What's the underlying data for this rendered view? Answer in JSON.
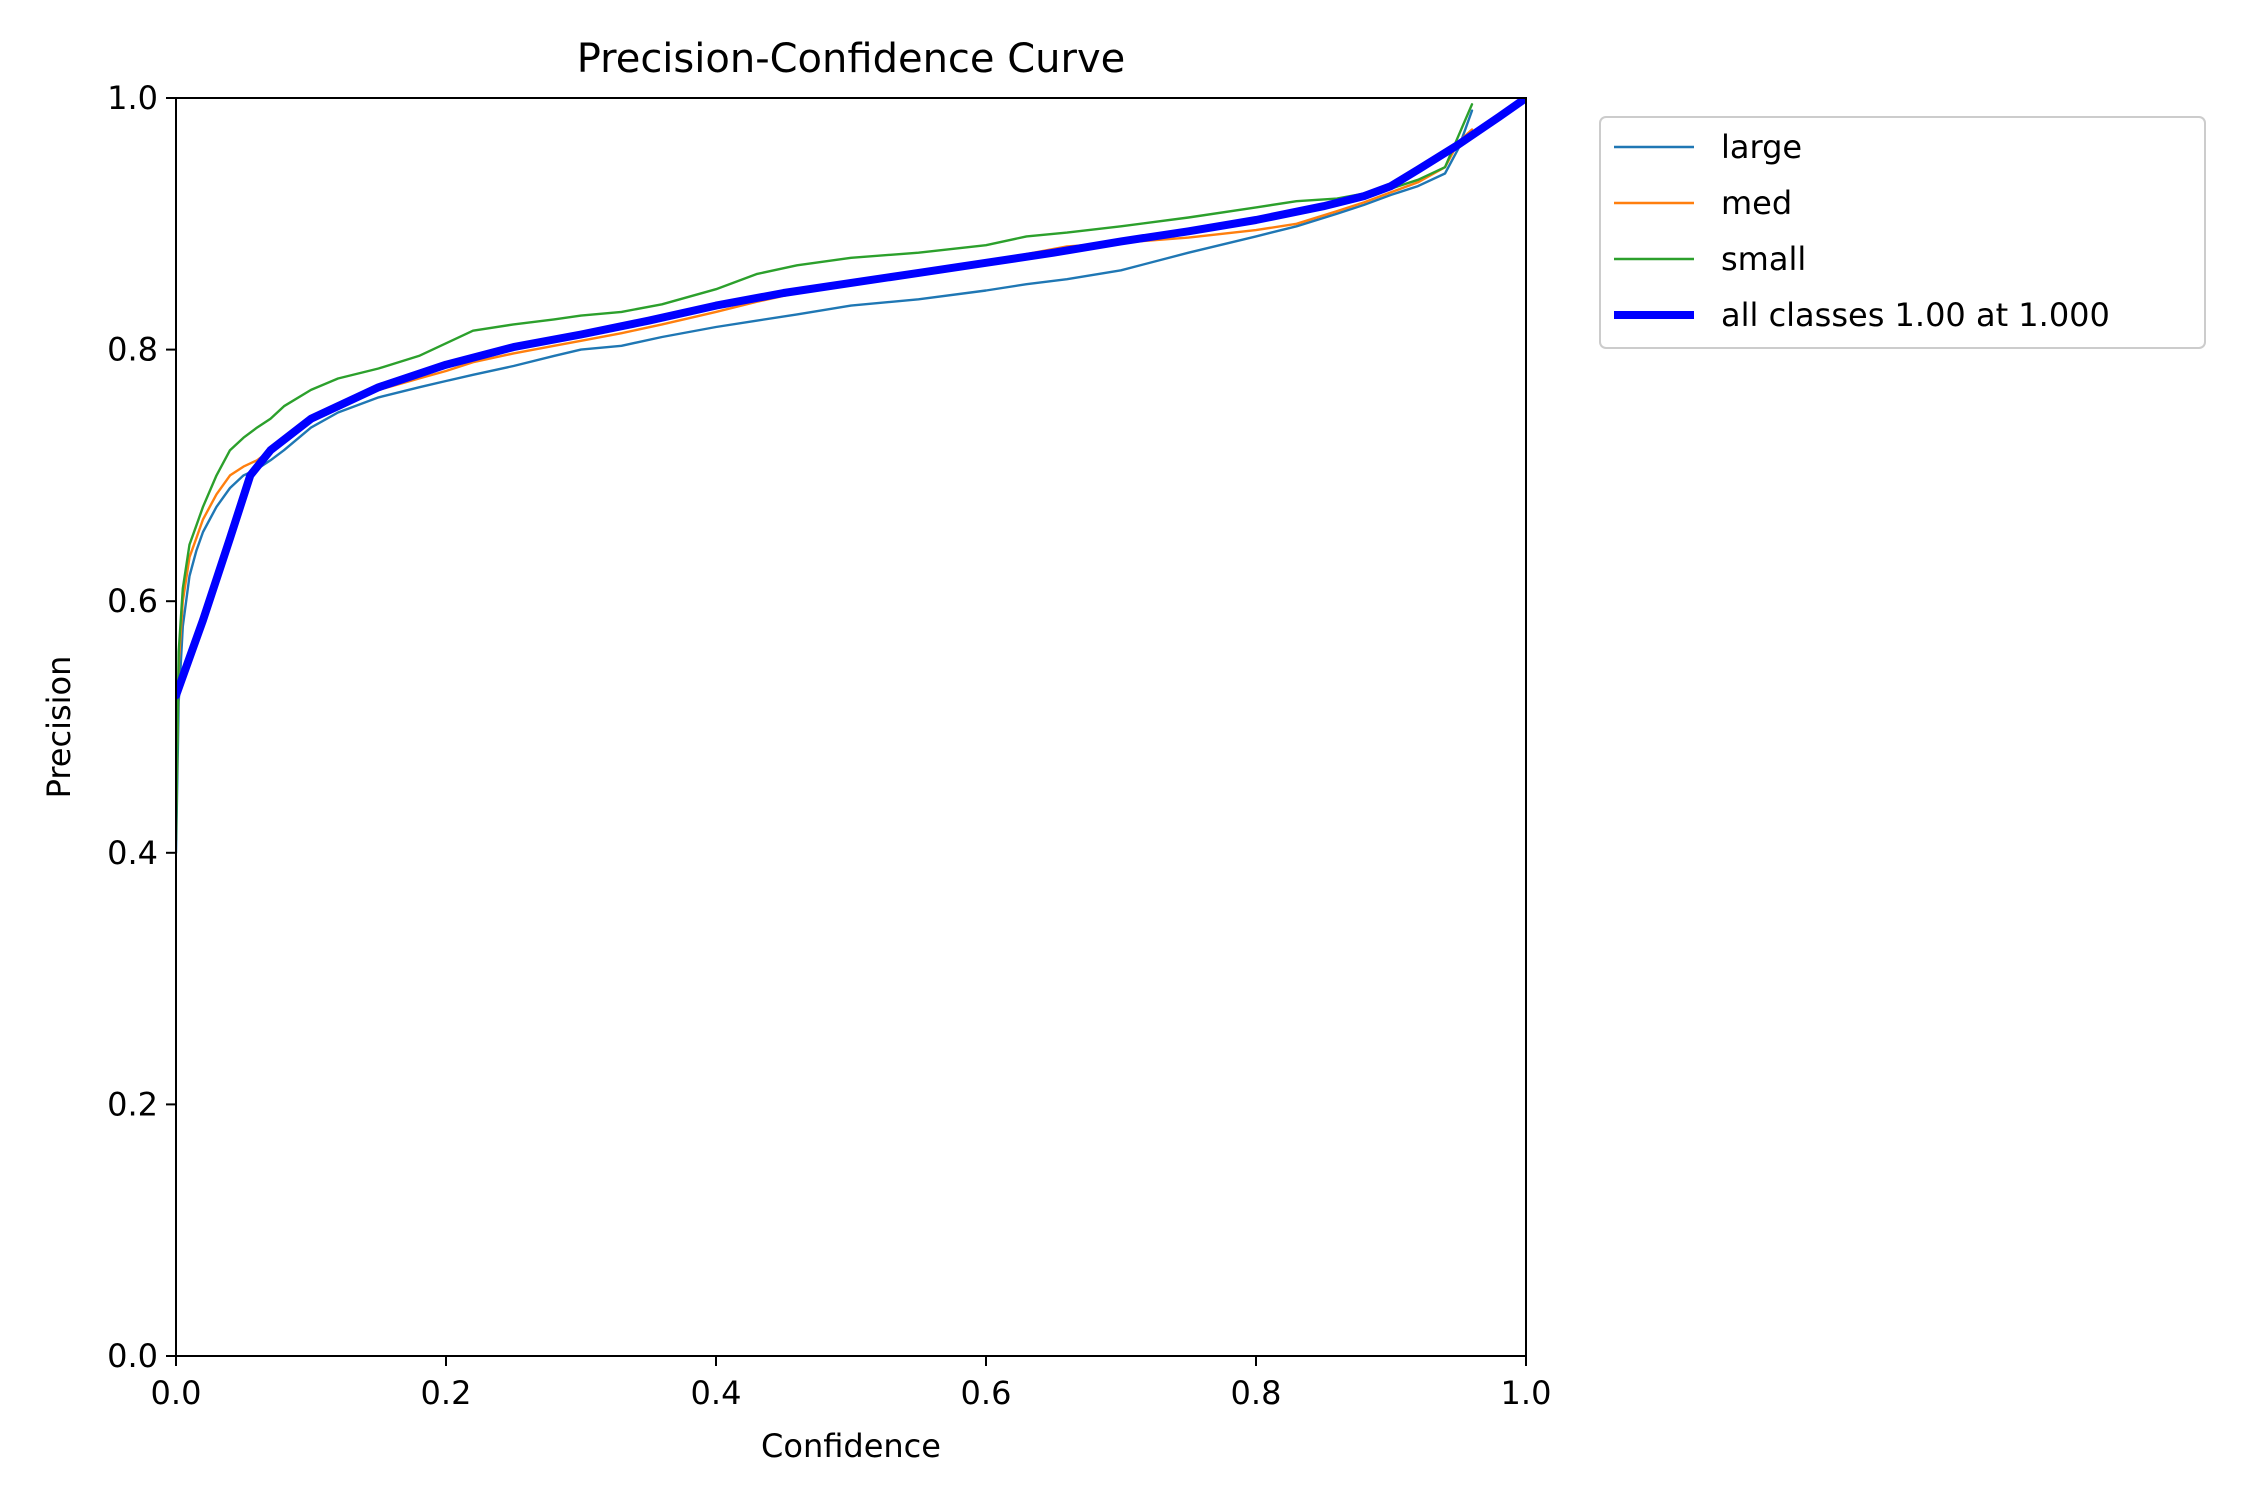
{
  "chart_data": {
    "type": "line",
    "title": "Precision-Confidence Curve",
    "xlabel": "Confidence",
    "ylabel": "Precision",
    "xlim": [
      0,
      1
    ],
    "ylim": [
      0,
      1
    ],
    "xticks": [
      "0.0",
      "0.2",
      "0.4",
      "0.6",
      "0.8",
      "1.0"
    ],
    "yticks": [
      "0.0",
      "0.2",
      "0.4",
      "0.6",
      "0.8",
      "1.0"
    ],
    "grid": false,
    "legend_position": "outside-top-right",
    "series": [
      {
        "name": "large",
        "color": "#1f77b4",
        "width": "thin",
        "x": [
          0.0,
          0.002,
          0.005,
          0.01,
          0.015,
          0.02,
          0.03,
          0.04,
          0.05,
          0.06,
          0.07,
          0.08,
          0.1,
          0.12,
          0.15,
          0.18,
          0.2,
          0.22,
          0.25,
          0.28,
          0.3,
          0.33,
          0.36,
          0.4,
          0.43,
          0.46,
          0.5,
          0.55,
          0.6,
          0.63,
          0.66,
          0.7,
          0.75,
          0.8,
          0.83,
          0.86,
          0.88,
          0.9,
          0.92,
          0.94,
          0.95,
          0.96
        ],
        "y": [
          0.4,
          0.52,
          0.58,
          0.62,
          0.64,
          0.655,
          0.675,
          0.69,
          0.7,
          0.705,
          0.712,
          0.72,
          0.738,
          0.75,
          0.762,
          0.77,
          0.775,
          0.78,
          0.787,
          0.795,
          0.8,
          0.803,
          0.81,
          0.818,
          0.823,
          0.828,
          0.835,
          0.84,
          0.847,
          0.852,
          0.856,
          0.863,
          0.877,
          0.89,
          0.898,
          0.908,
          0.915,
          0.923,
          0.93,
          0.94,
          0.96,
          0.99
        ]
      },
      {
        "name": "med",
        "color": "#ff7f0e",
        "width": "thin",
        "x": [
          0.0,
          0.002,
          0.005,
          0.01,
          0.015,
          0.02,
          0.03,
          0.04,
          0.05,
          0.06,
          0.07,
          0.08,
          0.1,
          0.12,
          0.15,
          0.18,
          0.2,
          0.22,
          0.25,
          0.28,
          0.3,
          0.33,
          0.36,
          0.4,
          0.43,
          0.46,
          0.5,
          0.55,
          0.6,
          0.63,
          0.66,
          0.7,
          0.75,
          0.8,
          0.83,
          0.86,
          0.88,
          0.9,
          0.92,
          0.94,
          0.95,
          0.96
        ],
        "y": [
          0.42,
          0.55,
          0.6,
          0.635,
          0.65,
          0.665,
          0.685,
          0.7,
          0.707,
          0.712,
          0.72,
          0.728,
          0.745,
          0.757,
          0.768,
          0.777,
          0.783,
          0.79,
          0.797,
          0.803,
          0.807,
          0.813,
          0.82,
          0.83,
          0.838,
          0.845,
          0.852,
          0.86,
          0.868,
          0.876,
          0.882,
          0.885,
          0.889,
          0.895,
          0.9,
          0.91,
          0.917,
          0.925,
          0.933,
          0.945,
          0.965,
          0.975
        ]
      },
      {
        "name": "small",
        "color": "#2ca02c",
        "width": "thin",
        "x": [
          0.0,
          0.002,
          0.005,
          0.01,
          0.015,
          0.02,
          0.03,
          0.04,
          0.05,
          0.06,
          0.07,
          0.08,
          0.1,
          0.12,
          0.15,
          0.18,
          0.2,
          0.22,
          0.25,
          0.28,
          0.3,
          0.33,
          0.36,
          0.4,
          0.43,
          0.46,
          0.5,
          0.55,
          0.6,
          0.63,
          0.66,
          0.7,
          0.75,
          0.8,
          0.83,
          0.86,
          0.88,
          0.9,
          0.92,
          0.94,
          0.95,
          0.96
        ],
        "y": [
          0.41,
          0.56,
          0.61,
          0.645,
          0.66,
          0.675,
          0.7,
          0.72,
          0.73,
          0.738,
          0.745,
          0.755,
          0.768,
          0.777,
          0.785,
          0.795,
          0.805,
          0.815,
          0.82,
          0.824,
          0.827,
          0.83,
          0.836,
          0.848,
          0.86,
          0.867,
          0.873,
          0.877,
          0.883,
          0.89,
          0.893,
          0.898,
          0.905,
          0.913,
          0.918,
          0.92,
          0.924,
          0.928,
          0.935,
          0.945,
          0.97,
          0.995
        ]
      },
      {
        "name": "all classes 1.00 at 1.000",
        "color": "#0000ff",
        "width": "thick",
        "x": [
          0.0,
          0.02,
          0.04,
          0.055,
          0.07,
          0.1,
          0.15,
          0.2,
          0.25,
          0.3,
          0.35,
          0.4,
          0.45,
          0.5,
          0.55,
          0.6,
          0.65,
          0.7,
          0.75,
          0.8,
          0.85,
          0.88,
          0.9,
          0.92,
          0.95,
          0.98,
          1.0
        ],
        "y": [
          0.525,
          0.585,
          0.65,
          0.7,
          0.72,
          0.745,
          0.77,
          0.788,
          0.802,
          0.812,
          0.823,
          0.835,
          0.845,
          0.853,
          0.861,
          0.869,
          0.877,
          0.886,
          0.894,
          0.903,
          0.914,
          0.922,
          0.93,
          0.943,
          0.963,
          0.985,
          1.0
        ]
      }
    ]
  }
}
